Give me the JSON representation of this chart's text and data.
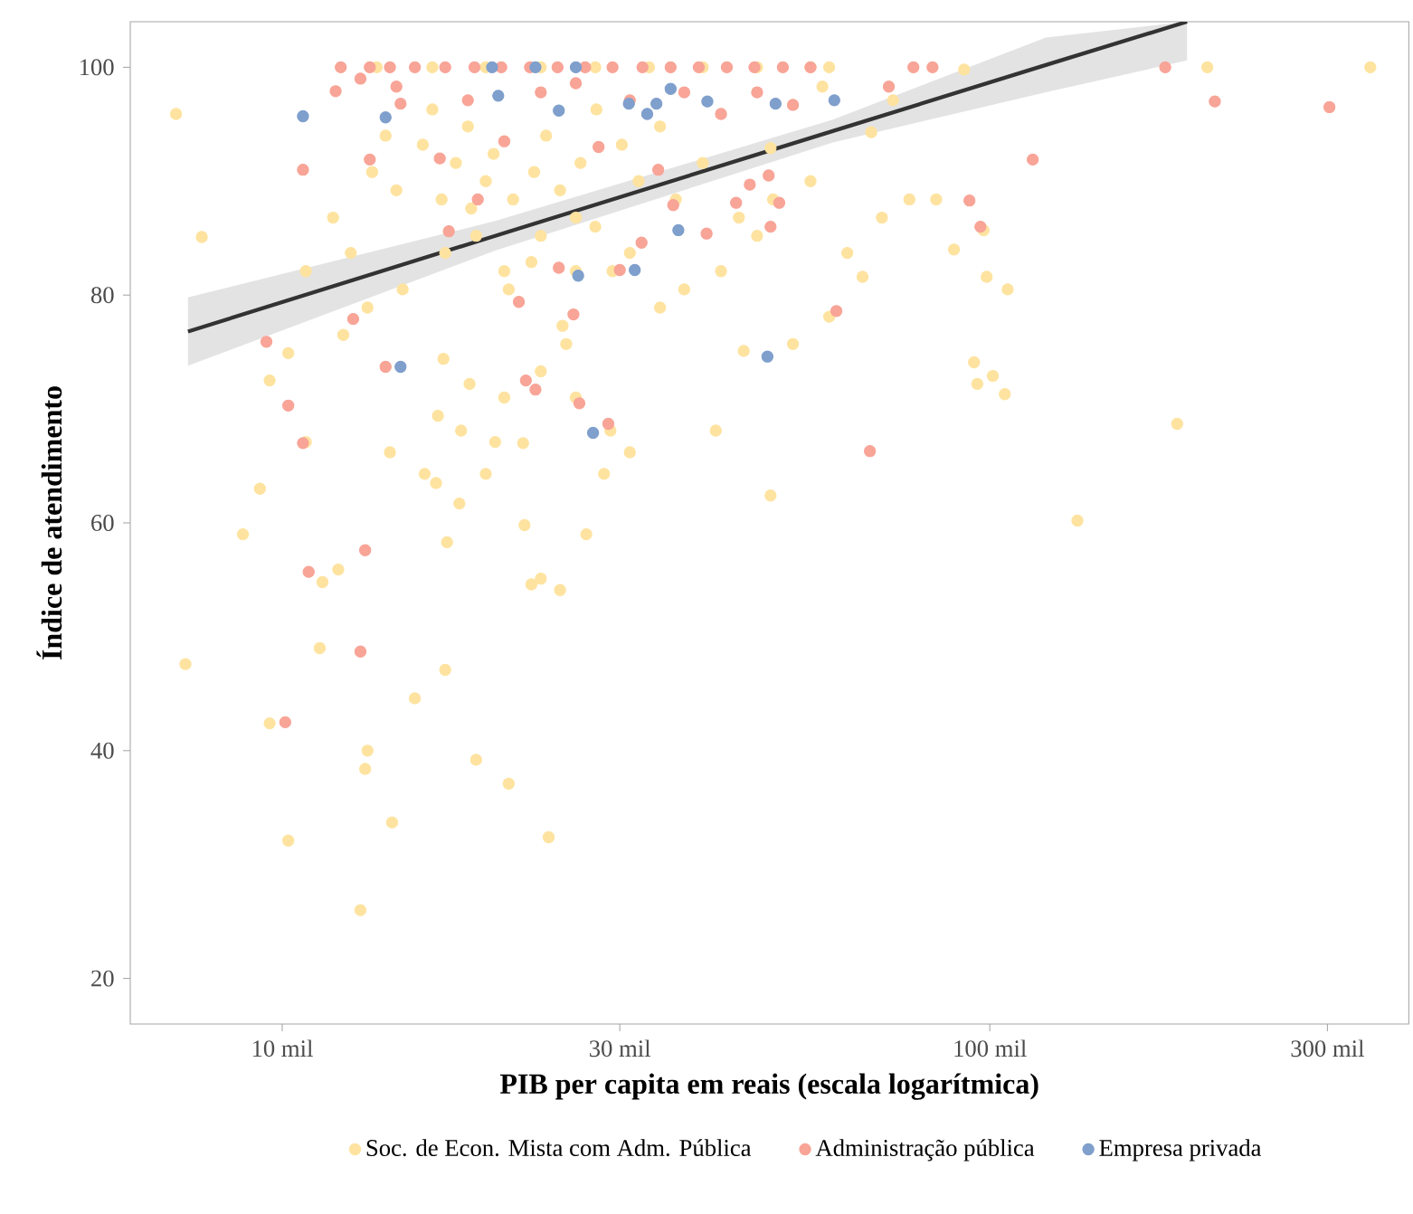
{
  "chart_data": {
    "type": "scatter",
    "xlabel": "PIB per capita em reais (escala logarítmica)",
    "ylabel": "Índice de atendimento",
    "log": "x",
    "legend": "bottom",
    "xlim": [
      6.1,
      391
    ],
    "ylim": [
      16,
      104
    ],
    "xticks": [
      {
        "value": 10,
        "label": "10 mil"
      },
      {
        "value": 30,
        "label": "30 mil"
      },
      {
        "value": 100,
        "label": "100 mil"
      },
      {
        "value": 300,
        "label": "300 mil"
      }
    ],
    "yticks": [
      20,
      40,
      60,
      80,
      100
    ],
    "series": [
      {
        "name": "Soc. de Econ. Mista com Adm. Pública",
        "marker": "circle",
        "color": "#fee3a0",
        "x": [
          7.08,
          7.3,
          7.7,
          8.8,
          9.3,
          9.6,
          10.2,
          9.6,
          10.8,
          11.4,
          11.3,
          12.0,
          13.2,
          12.9,
          13.1,
          14.3,
          15.4,
          17.0,
          18.8,
          20.9,
          23.8,
          17.8,
          17.1,
          23.2,
          22.5,
          24.7,
          22.0,
          26.9,
          19.4,
          14.2,
          15.9,
          16.6,
          17.9,
          20.0,
          21.9,
          16.9,
          18.4,
          23.2,
          26.0,
          29.1,
          31.0,
          20.6,
          24.9,
          25.2,
          20.9,
          22.5,
          23.2,
          26.0,
          27.7,
          29.3,
          34.2,
          37.0,
          41.7,
          46.9,
          44.2,
          49.4,
          55.8,
          52.7,
          59.3,
          66.1,
          62.9,
          70.4,
          77,
          84,
          89,
          98,
          99,
          106,
          95,
          96,
          105,
          101,
          133,
          184,
          203,
          345,
          92,
          68,
          73,
          58,
          49,
          49,
          41,
          44.9,
          13.4,
          14.5,
          15.8,
          16.8,
          17.6,
          18.5,
          19.4,
          19.9,
          21.2,
          22.7,
          23.6,
          24.7,
          26.4,
          27.8,
          30.2,
          31.9,
          34.2,
          36.0,
          39.3,
          18.3,
          16.3,
          14.0,
          12.5,
          11.8,
          10.8,
          10.2,
          12.2,
          13.2,
          14.8,
          17.0,
          18.8,
          20.6,
          26.0,
          31.0,
          13.6,
          16.3,
          19.4,
          23.2,
          27.7,
          33.0,
          39.3,
          46.9,
          55.8,
          59.3,
          28.5,
          16.5
        ],
        "values": [
          95.9,
          47.6,
          85.1,
          59.0,
          63,
          42.4,
          32.1,
          72.5,
          67.1,
          54.8,
          49.0,
          55.9,
          40,
          26.0,
          38.4,
          33.7,
          44.6,
          47.1,
          39.2,
          37.1,
          32.4,
          61.7,
          58.3,
          55.1,
          54.6,
          54.1,
          59.8,
          59.0,
          64.3,
          66.2,
          64.3,
          69.4,
          68.1,
          67.1,
          67.0,
          74.4,
          72.2,
          73.3,
          71.0,
          68.1,
          66.2,
          71,
          77.3,
          75.7,
          80.5,
          82.9,
          85.2,
          86.8,
          86,
          82.1,
          78.9,
          80.5,
          82.1,
          85.2,
          86.8,
          88.4,
          90,
          75.7,
          78.1,
          81.6,
          83.7,
          86.8,
          88.4,
          88.4,
          84,
          85.7,
          81.6,
          80.5,
          74.1,
          72.2,
          71.3,
          72.9,
          60.2,
          68.7,
          100,
          100,
          99.8,
          94.3,
          97.1,
          98.3,
          92.9,
          62.4,
          68.1,
          75.1,
          90.8,
          89.2,
          93.2,
          88.4,
          91.6,
          87.6,
          90,
          92.4,
          88.4,
          90.8,
          94,
          89.2,
          91.6,
          96.3,
          93.2,
          90,
          94.8,
          88.4,
          91.6,
          94.8,
          96.3,
          94,
          83.7,
          86.8,
          82.1,
          74.9,
          76.5,
          78.9,
          80.5,
          83.7,
          85.2,
          82.1,
          82.1,
          83.7,
          100,
          100,
          100,
          100,
          100,
          100,
          100,
          100,
          100,
          100,
          64.3,
          63.5
        ]
      },
      {
        "name": "Administração pública",
        "marker": "circle",
        "color": "#f8a497",
        "x": [
          9.5,
          10.2,
          10.7,
          10.9,
          13.1,
          12.9,
          10.1,
          14.0,
          12.6,
          10.7,
          13.3,
          14.7,
          11.9,
          12.9,
          16.7,
          18.9,
          17.2,
          21.6,
          24.6,
          25.8,
          28.9,
          26.3,
          22.1,
          22.8,
          30.0,
          32.2,
          35.7,
          39.8,
          43.8,
          50.4,
          49.0,
          60.7,
          67.7,
          93.6,
          97,
          115,
          208,
          302,
          177,
          48.7,
          45.8,
          72,
          78,
          83,
          12.1,
          13.3,
          14.2,
          15.4,
          17.0,
          18.7,
          20.4,
          22.4,
          24.5,
          26.8,
          29.3,
          32.3,
          35.4,
          38.8,
          42.5,
          46.5,
          51.0,
          55.8,
          14.5,
          18.3,
          23.2,
          26.0,
          31.0,
          37.0,
          41.7,
          46.9,
          52.7,
          20.6,
          28.0,
          34.0
        ],
        "values": [
          75.9,
          70.3,
          67.0,
          55.7,
          57.6,
          48.7,
          42.5,
          73.7,
          77.9,
          91,
          91.9,
          96.8,
          97.9,
          99,
          92,
          88.4,
          85.6,
          79.4,
          82.4,
          78.3,
          68.7,
          70.5,
          72.5,
          71.7,
          82.2,
          84.6,
          87.9,
          85.4,
          88.1,
          88.1,
          86,
          78.6,
          66.3,
          88.3,
          86,
          91.9,
          97,
          96.5,
          100,
          90.5,
          89.7,
          98.3,
          100,
          100,
          100,
          100,
          100,
          100,
          100,
          100,
          100,
          100,
          100,
          100,
          100,
          100,
          100,
          100,
          100,
          100,
          100,
          100,
          98.3,
          97.1,
          97.8,
          98.6,
          97.1,
          97.8,
          95.9,
          97.8,
          96.7,
          93.5,
          93,
          91
        ]
      },
      {
        "name": "Empresa privada",
        "marker": "circle",
        "color": "#7f9fcc",
        "x": [
          10.7,
          14.0,
          14.7,
          20.2,
          24.6,
          30.9,
          32.8,
          33.8,
          35.4,
          39.9,
          36.3,
          31.5,
          26.2,
          27.5,
          48.5,
          49.8,
          60.3,
          19.8,
          22.8,
          26.0
        ],
        "values": [
          95.7,
          95.6,
          73.7,
          97.5,
          96.2,
          96.8,
          95.9,
          96.8,
          98.1,
          97,
          85.7,
          82.2,
          81.7,
          67.9,
          74.6,
          96.8,
          97.1,
          100,
          100,
          100
        ]
      },
      {
        "type": "line",
        "marker": "none",
        "color": "#333333",
        "x": [
          7.36,
          20,
          60,
          120,
          190
        ],
        "values": [
          76.8,
          85.2,
          94.4,
          100.2,
          104
        ],
        "lower": [
          73.8,
          83.9,
          93.4,
          97.8,
          100.6
        ],
        "upper": [
          79.8,
          86.5,
          95.4,
          102.6,
          104
        ]
      }
    ]
  }
}
